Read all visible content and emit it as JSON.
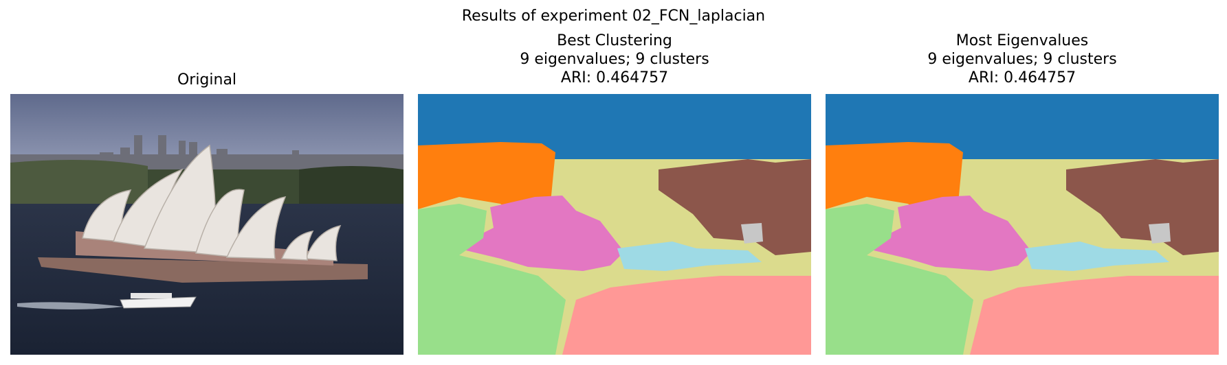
{
  "figure": {
    "title": "Results of experiment 02_FCN_laplacian"
  },
  "panels": [
    {
      "title_lines": [
        "Original"
      ],
      "image": "sydney-opera-house-photo"
    },
    {
      "title_lines": [
        "Best Clustering",
        "9 eigenvalues; 9 clusters",
        "ARI: 0.464757"
      ],
      "image": "segmentation-map"
    },
    {
      "title_lines": [
        "Most Eigenvalues",
        "9 eigenvalues; 9 clusters",
        "ARI: 0.464757"
      ],
      "image": "segmentation-map"
    }
  ],
  "colors": {
    "sky_blue_cluster": "#1f77b4",
    "orange_cluster": "#ff7f0e",
    "olive_cluster": "#dbdb8d",
    "brown_cluster": "#8c564b",
    "pink_cluster": "#e377c2",
    "light_green_cluster": "#98df8a",
    "light_blue_cluster": "#9edae5",
    "salmon_cluster": "#ff9896",
    "gray_cluster": "#c7c7c7"
  }
}
